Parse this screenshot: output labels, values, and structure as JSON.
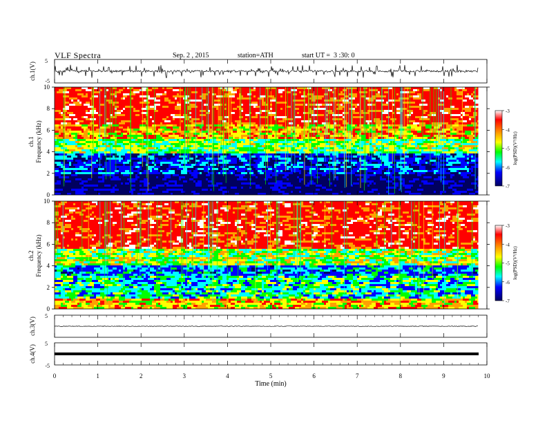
{
  "header": {
    "title": "VLF Spectra",
    "date": "Sep. 2 , 2015",
    "station": "station=ATH",
    "start": "start UT =  3 :30: 0"
  },
  "colors": {
    "spectrum": [
      "#ffffff",
      "#ff0000",
      "#ffa000",
      "#ffff00",
      "#00ff00",
      "#00ffff",
      "#0000ff",
      "#000060"
    ],
    "trace": "#000000"
  },
  "chart_data": [
    {
      "type": "line",
      "title": "",
      "ylabel": "ch.1(V)",
      "ylim": [
        -5,
        5
      ],
      "yticks": [
        "5",
        "-5"
      ],
      "series": [
        {
          "name": "",
          "x": [
            0,
            9.8
          ],
          "y_range": [
            -3,
            3
          ],
          "level": 0
        }
      ]
    },
    {
      "type": "heatmap",
      "ylabel": "Frequency (kHz)",
      "channel_label": "ch.1",
      "ylim": [
        0,
        10
      ],
      "yticks": [
        "0",
        "2",
        "4",
        "6",
        "8",
        "10"
      ],
      "x_end": 9.8,
      "bands_khz": [
        {
          "from": 0,
          "to": 2.0,
          "log_psd": -6.8
        },
        {
          "from": 2.0,
          "to": 3.8,
          "log_psd": -6.2
        },
        {
          "from": 3.8,
          "to": 5.2,
          "log_psd": -5.2
        },
        {
          "from": 5.2,
          "to": 6.5,
          "log_psd": -4.5
        },
        {
          "from": 6.5,
          "to": 10,
          "log_psd": -3.8
        }
      ],
      "colorbar": {
        "label": "log(PSD)(V²/Hz)",
        "ticks": [
          "-3",
          "-4",
          "-5",
          "-6",
          "-7"
        ],
        "range": [
          -7,
          -3
        ]
      }
    },
    {
      "type": "heatmap",
      "ylabel": "Frequency (kHz)",
      "channel_label": "ch.2",
      "ylim": [
        0,
        10
      ],
      "yticks": [
        "0",
        "2",
        "4",
        "6",
        "8",
        "10"
      ],
      "x_end": 9.8,
      "bands_khz": [
        {
          "from": 0,
          "to": 1.0,
          "log_psd": -4.6
        },
        {
          "from": 1.0,
          "to": 3.0,
          "log_psd": -5.5
        },
        {
          "from": 3.0,
          "to": 4.0,
          "log_psd": -5.9
        },
        {
          "from": 4.0,
          "to": 5.5,
          "log_psd": -5.0
        },
        {
          "from": 5.5,
          "to": 10,
          "log_psd": -3.8
        }
      ],
      "colorbar": {
        "label": "log(PSD)(V²/Hz)",
        "ticks": [
          "-3",
          "-4",
          "-5",
          "-6",
          "-7"
        ],
        "range": [
          -7,
          -3
        ]
      }
    },
    {
      "type": "line",
      "ylabel": "ch.3(V)",
      "ylim": [
        -5,
        5
      ],
      "yticks": [
        "5",
        "-5"
      ],
      "series": [
        {
          "name": "",
          "x": [
            0,
            9.8
          ],
          "y_range": [
            -0.3,
            0.3
          ],
          "level": 0
        }
      ]
    },
    {
      "type": "line",
      "ylabel": "ch.4(V)",
      "ylim": [
        -5,
        5
      ],
      "yticks": [
        "5",
        "-5"
      ],
      "series": [
        {
          "name": "",
          "x": [
            0,
            9.8
          ],
          "y_range": [
            -0.2,
            0.2
          ],
          "level": 0
        }
      ]
    }
  ],
  "xaxis": {
    "label": "Time (min)",
    "ticks": [
      "0",
      "1",
      "2",
      "3",
      "4",
      "5",
      "6",
      "7",
      "8",
      "9",
      "10"
    ],
    "xlim": [
      0,
      10
    ]
  }
}
